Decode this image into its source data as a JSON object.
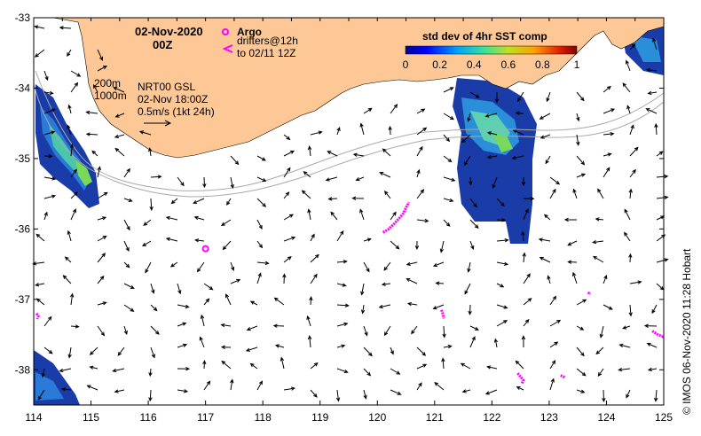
{
  "header": {
    "date": "02-Nov-2020",
    "time": "00Z"
  },
  "argo": {
    "label": "Argo",
    "drifters_line1": "drifters@12h",
    "drifters_line2": "to 02/11 12Z"
  },
  "legend": {
    "title": "std dev of 4hr SST comp",
    "ticks": [
      "0",
      "0.2",
      "0.4",
      "0.6",
      "0.8",
      "1"
    ]
  },
  "annotations": {
    "contour_200": "200m",
    "contour_1000": "1000m",
    "product": "NRT00 GSL",
    "product_time": "02-Nov 18:00Z",
    "scale": "0.5m/s (1kt 24h)"
  },
  "credit": "©  IMOS 06-Nov-2020 11:28 Hobart",
  "axes": {
    "x_ticks": [
      "114",
      "115",
      "116",
      "117",
      "118",
      "119",
      "120",
      "121",
      "122",
      "123",
      "124",
      "125"
    ],
    "y_ticks": [
      "-33",
      "-34",
      "-35",
      "-36",
      "-37",
      "-38"
    ],
    "lon_range": [
      114,
      125
    ],
    "lat_range": [
      -38.5,
      -33
    ]
  },
  "colors": {
    "land": "#fdc896",
    "argo": "#ff00ff",
    "contour": "#aaaaaa"
  },
  "argo_floats": [
    {
      "lon": 117.0,
      "lat": -36.28
    }
  ],
  "drifter_tracks": [
    {
      "points": [
        [
          120.1,
          -36.05
        ],
        [
          120.2,
          -36.0
        ],
        [
          120.3,
          -35.92
        ],
        [
          120.38,
          -35.85
        ],
        [
          120.45,
          -35.78
        ],
        [
          120.5,
          -35.7
        ],
        [
          120.55,
          -35.62
        ]
      ]
    },
    {
      "points": [
        [
          114.05,
          -37.2
        ],
        [
          114.08,
          -37.24
        ],
        [
          114.06,
          -37.28
        ]
      ]
    },
    {
      "points": [
        [
          121.12,
          -37.15
        ],
        [
          121.14,
          -37.2
        ],
        [
          121.16,
          -37.27
        ]
      ]
    },
    {
      "points": [
        [
          123.68,
          -36.9
        ],
        [
          123.72,
          -36.93
        ]
      ]
    },
    {
      "points": [
        [
          124.8,
          -37.45
        ],
        [
          124.9,
          -37.5
        ],
        [
          124.98,
          -37.53
        ],
        [
          125.0,
          -37.52
        ]
      ]
    },
    {
      "points": [
        [
          122.45,
          -38.05
        ],
        [
          122.5,
          -38.1
        ],
        [
          122.55,
          -38.15
        ],
        [
          122.52,
          -38.2
        ]
      ]
    },
    {
      "points": [
        [
          123.2,
          -38.08
        ],
        [
          123.28,
          -38.11
        ]
      ]
    }
  ]
}
